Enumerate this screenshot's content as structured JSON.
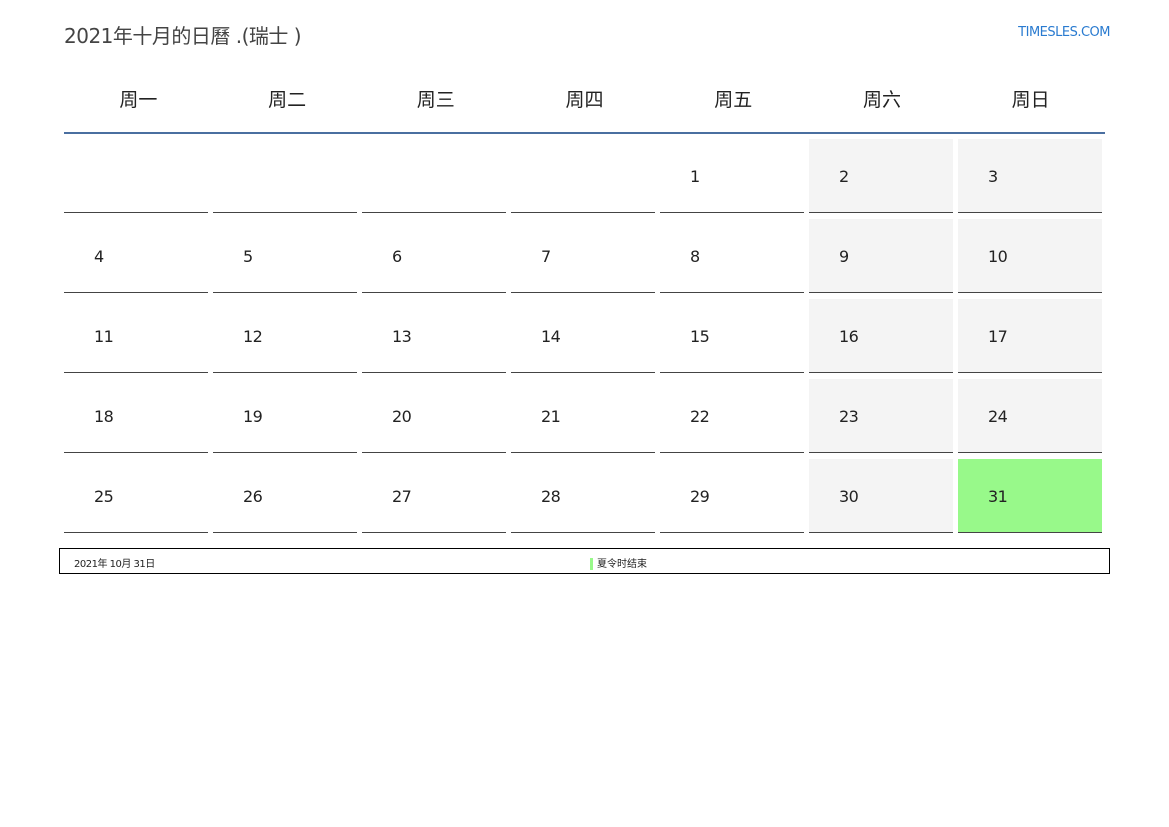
{
  "title": "2021年十月的日曆 .(瑞士 )",
  "logo": "TIMESLES.COM",
  "weekdays": [
    "周一",
    "周二",
    "周三",
    "周四",
    "周五",
    "周六",
    "周日"
  ],
  "days": [
    "",
    "",
    "",
    "",
    "1",
    "2",
    "3",
    "4",
    "5",
    "6",
    "7",
    "8",
    "9",
    "10",
    "11",
    "12",
    "13",
    "14",
    "15",
    "16",
    "17",
    "18",
    "19",
    "20",
    "21",
    "22",
    "23",
    "24",
    "25",
    "26",
    "27",
    "28",
    "29",
    "30",
    "31"
  ],
  "highlight_day": "31",
  "highlight_color": "#98f98a",
  "weekend_color": "#f4f4f4",
  "events": [
    {
      "date": "2021年 10月 31日",
      "label": "夏令时结束"
    }
  ]
}
